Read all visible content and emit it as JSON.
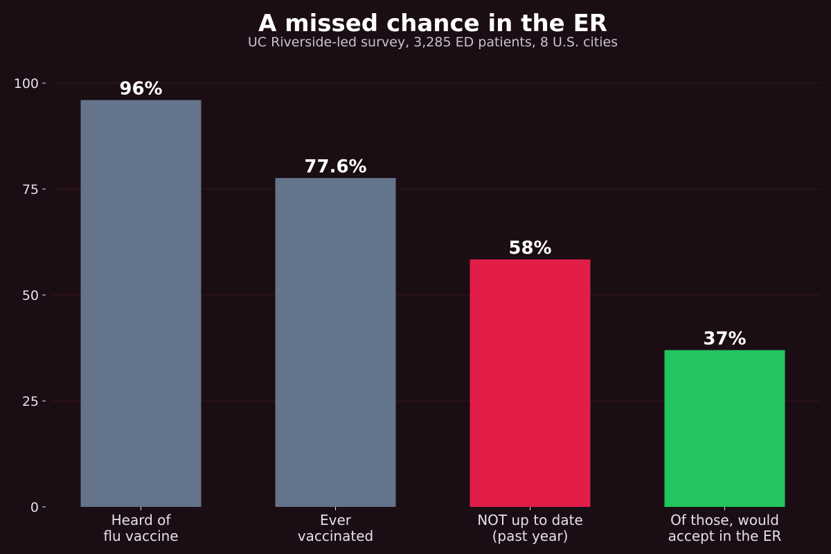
{
  "chart_data": {
    "type": "bar",
    "title": "A missed chance in the ER",
    "subtitle": "UC Riverside-led survey, 3,285 ED patients, 8 U.S. cities",
    "xlabel": "",
    "ylabel": "",
    "ylim": [
      0,
      100
    ],
    "yticks": [
      0,
      25,
      50,
      75,
      100
    ],
    "grid": true,
    "categories": [
      [
        "Heard of",
        "flu vaccine"
      ],
      [
        "Ever",
        "vaccinated"
      ],
      [
        "NOT up to date",
        "(past year)"
      ],
      [
        "Of those, would",
        "accept in the ER"
      ]
    ],
    "values": [
      96,
      77.6,
      58.4,
      37
    ],
    "data_labels": [
      "96%",
      "77.6%",
      "58%",
      "37%"
    ],
    "bar_colors": [
      "#64748b",
      "#64748b",
      "#e11d48",
      "#22c55e"
    ],
    "background_color": "#1b0d14"
  }
}
